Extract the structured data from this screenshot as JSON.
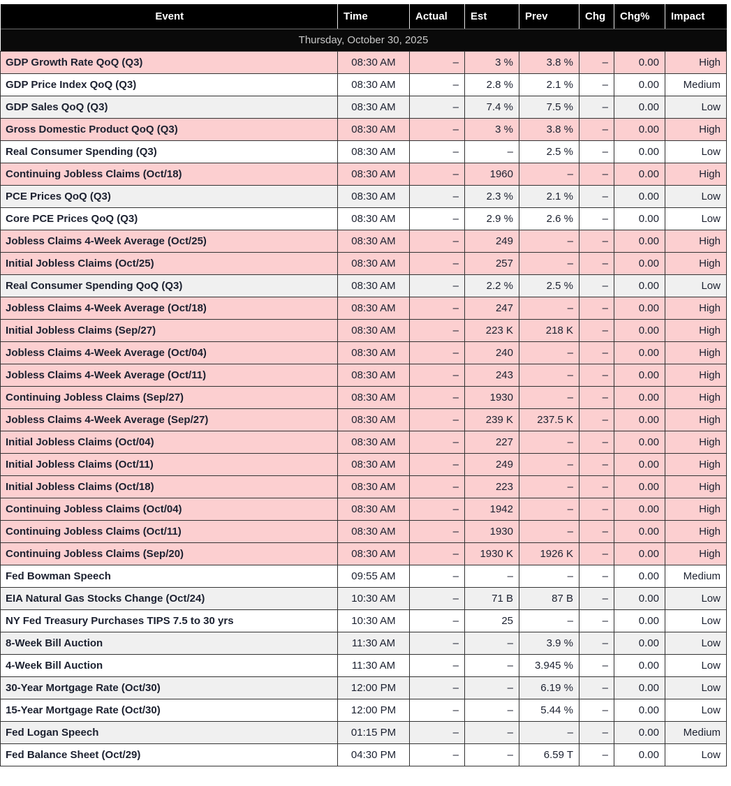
{
  "colors": {
    "header_bg": "#000000",
    "header_text": "#ffffff",
    "date_row_bg": "#0a0a0a",
    "date_row_text": "#c9c9c9",
    "high_impact_row_bg": "#fccfd0",
    "stripe_white": "#ffffff",
    "stripe_gray": "#f0f0f0",
    "cell_text": "#1c2130",
    "cell_border": "#333333"
  },
  "table": {
    "columns": [
      {
        "key": "event",
        "label": "Event"
      },
      {
        "key": "time",
        "label": "Time"
      },
      {
        "key": "actual",
        "label": "Actual"
      },
      {
        "key": "est",
        "label": "Est"
      },
      {
        "key": "prev",
        "label": "Prev"
      },
      {
        "key": "chg",
        "label": "Chg"
      },
      {
        "key": "chg_pct",
        "label": "Chg%"
      },
      {
        "key": "impact",
        "label": "Impact"
      }
    ],
    "date_header": "Thursday, October 30, 2025",
    "rows": [
      {
        "event": "GDP Growth Rate QoQ (Q3)",
        "time": "08:30 AM",
        "actual": "–",
        "est": "3 %",
        "prev": "3.8 %",
        "chg": "–",
        "chg_pct": "0.00",
        "impact": "High",
        "bg": "pink"
      },
      {
        "event": "GDP Price Index QoQ (Q3)",
        "time": "08:30 AM",
        "actual": "–",
        "est": "2.8 %",
        "prev": "2.1 %",
        "chg": "–",
        "chg_pct": "0.00",
        "impact": "Medium",
        "bg": "white"
      },
      {
        "event": "GDP Sales QoQ (Q3)",
        "time": "08:30 AM",
        "actual": "–",
        "est": "7.4 %",
        "prev": "7.5 %",
        "chg": "–",
        "chg_pct": "0.00",
        "impact": "Low",
        "bg": "gray"
      },
      {
        "event": "Gross Domestic Product QoQ (Q3)",
        "time": "08:30 AM",
        "actual": "–",
        "est": "3 %",
        "prev": "3.8 %",
        "chg": "–",
        "chg_pct": "0.00",
        "impact": "High",
        "bg": "pink"
      },
      {
        "event": "Real Consumer Spending (Q3)",
        "time": "08:30 AM",
        "actual": "–",
        "est": "–",
        "prev": "2.5 %",
        "chg": "–",
        "chg_pct": "0.00",
        "impact": "Low",
        "bg": "white"
      },
      {
        "event": "Continuing Jobless Claims (Oct/18)",
        "time": "08:30 AM",
        "actual": "–",
        "est": "1960",
        "prev": "–",
        "chg": "–",
        "chg_pct": "0.00",
        "impact": "High",
        "bg": "pink"
      },
      {
        "event": "PCE Prices QoQ (Q3)",
        "time": "08:30 AM",
        "actual": "–",
        "est": "2.3 %",
        "prev": "2.1 %",
        "chg": "–",
        "chg_pct": "0.00",
        "impact": "Low",
        "bg": "gray"
      },
      {
        "event": "Core PCE Prices QoQ (Q3)",
        "time": "08:30 AM",
        "actual": "–",
        "est": "2.9 %",
        "prev": "2.6 %",
        "chg": "–",
        "chg_pct": "0.00",
        "impact": "Low",
        "bg": "white"
      },
      {
        "event": "Jobless Claims 4-Week Average (Oct/25)",
        "time": "08:30 AM",
        "actual": "–",
        "est": "249",
        "prev": "–",
        "chg": "–",
        "chg_pct": "0.00",
        "impact": "High",
        "bg": "pink"
      },
      {
        "event": "Initial Jobless Claims (Oct/25)",
        "time": "08:30 AM",
        "actual": "–",
        "est": "257",
        "prev": "–",
        "chg": "–",
        "chg_pct": "0.00",
        "impact": "High",
        "bg": "pink"
      },
      {
        "event": "Real Consumer Spending QoQ (Q3)",
        "time": "08:30 AM",
        "actual": "–",
        "est": "2.2 %",
        "prev": "2.5 %",
        "chg": "–",
        "chg_pct": "0.00",
        "impact": "Low",
        "bg": "gray"
      },
      {
        "event": "Jobless Claims 4-Week Average (Oct/18)",
        "time": "08:30 AM",
        "actual": "–",
        "est": "247",
        "prev": "–",
        "chg": "–",
        "chg_pct": "0.00",
        "impact": "High",
        "bg": "pink"
      },
      {
        "event": "Initial Jobless Claims (Sep/27)",
        "time": "08:30 AM",
        "actual": "–",
        "est": "223 K",
        "prev": "218 K",
        "chg": "–",
        "chg_pct": "0.00",
        "impact": "High",
        "bg": "pink"
      },
      {
        "event": "Jobless Claims 4-Week Average (Oct/04)",
        "time": "08:30 AM",
        "actual": "–",
        "est": "240",
        "prev": "–",
        "chg": "–",
        "chg_pct": "0.00",
        "impact": "High",
        "bg": "pink"
      },
      {
        "event": "Jobless Claims 4-Week Average (Oct/11)",
        "time": "08:30 AM",
        "actual": "–",
        "est": "243",
        "prev": "–",
        "chg": "–",
        "chg_pct": "0.00",
        "impact": "High",
        "bg": "pink"
      },
      {
        "event": "Continuing Jobless Claims (Sep/27)",
        "time": "08:30 AM",
        "actual": "–",
        "est": "1930",
        "prev": "–",
        "chg": "–",
        "chg_pct": "0.00",
        "impact": "High",
        "bg": "pink"
      },
      {
        "event": "Jobless Claims 4-Week Average (Sep/27)",
        "time": "08:30 AM",
        "actual": "–",
        "est": "239 K",
        "prev": "237.5 K",
        "chg": "–",
        "chg_pct": "0.00",
        "impact": "High",
        "bg": "pink"
      },
      {
        "event": "Initial Jobless Claims (Oct/04)",
        "time": "08:30 AM",
        "actual": "–",
        "est": "227",
        "prev": "–",
        "chg": "–",
        "chg_pct": "0.00",
        "impact": "High",
        "bg": "pink"
      },
      {
        "event": "Initial Jobless Claims (Oct/11)",
        "time": "08:30 AM",
        "actual": "–",
        "est": "249",
        "prev": "–",
        "chg": "–",
        "chg_pct": "0.00",
        "impact": "High",
        "bg": "pink"
      },
      {
        "event": "Initial Jobless Claims (Oct/18)",
        "time": "08:30 AM",
        "actual": "–",
        "est": "223",
        "prev": "–",
        "chg": "–",
        "chg_pct": "0.00",
        "impact": "High",
        "bg": "pink"
      },
      {
        "event": "Continuing Jobless Claims (Oct/04)",
        "time": "08:30 AM",
        "actual": "–",
        "est": "1942",
        "prev": "–",
        "chg": "–",
        "chg_pct": "0.00",
        "impact": "High",
        "bg": "pink"
      },
      {
        "event": "Continuing Jobless Claims (Oct/11)",
        "time": "08:30 AM",
        "actual": "–",
        "est": "1930",
        "prev": "–",
        "chg": "–",
        "chg_pct": "0.00",
        "impact": "High",
        "bg": "pink"
      },
      {
        "event": "Continuing Jobless Claims (Sep/20)",
        "time": "08:30 AM",
        "actual": "–",
        "est": "1930 K",
        "prev": "1926 K",
        "chg": "–",
        "chg_pct": "0.00",
        "impact": "High",
        "bg": "pink"
      },
      {
        "event": "Fed Bowman Speech",
        "time": "09:55 AM",
        "actual": "–",
        "est": "–",
        "prev": "–",
        "chg": "–",
        "chg_pct": "0.00",
        "impact": "Medium",
        "bg": "white"
      },
      {
        "event": "EIA Natural Gas Stocks Change (Oct/24)",
        "time": "10:30 AM",
        "actual": "–",
        "est": "71 B",
        "prev": "87 B",
        "chg": "–",
        "chg_pct": "0.00",
        "impact": "Low",
        "bg": "gray"
      },
      {
        "event": "NY Fed Treasury Purchases TIPS 7.5 to 30 yrs",
        "time": "10:30 AM",
        "actual": "–",
        "est": "25",
        "prev": "–",
        "chg": "–",
        "chg_pct": "0.00",
        "impact": "Low",
        "bg": "white"
      },
      {
        "event": "8-Week Bill Auction",
        "time": "11:30 AM",
        "actual": "–",
        "est": "–",
        "prev": "3.9 %",
        "chg": "–",
        "chg_pct": "0.00",
        "impact": "Low",
        "bg": "gray"
      },
      {
        "event": "4-Week Bill Auction",
        "time": "11:30 AM",
        "actual": "–",
        "est": "–",
        "prev": "3.945 %",
        "chg": "–",
        "chg_pct": "0.00",
        "impact": "Low",
        "bg": "white"
      },
      {
        "event": "30-Year Mortgage Rate (Oct/30)",
        "time": "12:00 PM",
        "actual": "–",
        "est": "–",
        "prev": "6.19 %",
        "chg": "–",
        "chg_pct": "0.00",
        "impact": "Low",
        "bg": "gray"
      },
      {
        "event": "15-Year Mortgage Rate (Oct/30)",
        "time": "12:00 PM",
        "actual": "–",
        "est": "–",
        "prev": "5.44 %",
        "chg": "–",
        "chg_pct": "0.00",
        "impact": "Low",
        "bg": "white"
      },
      {
        "event": "Fed Logan Speech",
        "time": "01:15 PM",
        "actual": "–",
        "est": "–",
        "prev": "–",
        "chg": "–",
        "chg_pct": "0.00",
        "impact": "Medium",
        "bg": "gray"
      },
      {
        "event": "Fed Balance Sheet (Oct/29)",
        "time": "04:30 PM",
        "actual": "–",
        "est": "–",
        "prev": "6.59 T",
        "chg": "–",
        "chg_pct": "0.00",
        "impact": "Low",
        "bg": "white"
      }
    ]
  }
}
